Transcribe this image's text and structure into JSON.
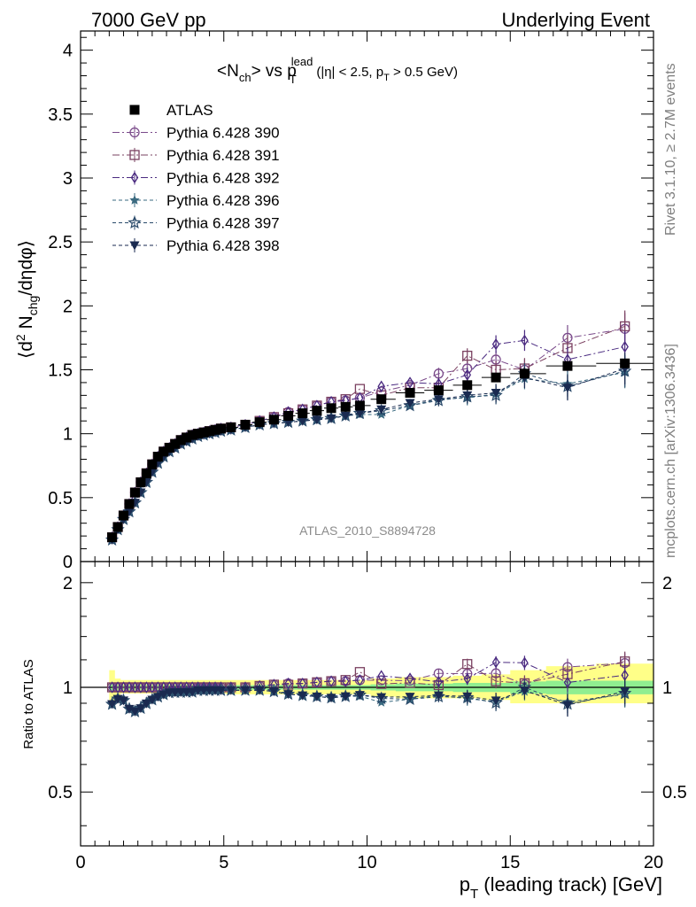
{
  "header": {
    "left": "7000 GeV pp",
    "right": "Underlying Event"
  },
  "side_labels": {
    "rivet": "Rivet 3.1.10, ≥ 2.7M events",
    "mcplots": "mcplots.cern.ch [arXiv:1306.3436]"
  },
  "plot": {
    "title_main": "<N",
    "title_sub_ch": "ch",
    "title_mid": "> vs p",
    "title_sub_t": "T",
    "title_sup_lead": "lead",
    "title_cuts_a": "(|η| < 2.5, p",
    "title_cuts_sub": "T",
    "title_cuts_b": " > 0.5 GeV)",
    "ylabel_a": "⟨d",
    "ylabel_sup": "2",
    "ylabel_b": " N",
    "ylabel_sub": "chg",
    "ylabel_c": "/dηdφ⟩",
    "analysis_id": "ATLAS_2010_S8894728",
    "ratio_ylabel": "Ratio to ATLAS",
    "xlabel_a": "p",
    "xlabel_sub": "T",
    "xlabel_b": " (leading track) [GeV]"
  },
  "chart_data": {
    "type": "scatter",
    "xlim": [
      0,
      20
    ],
    "ylim_main": [
      0,
      4.15
    ],
    "ylim_ratio": [
      0.35,
      2.3
    ],
    "ratio_log_scale": true,
    "x_ticks": [
      "0",
      "5",
      "10",
      "15",
      "20"
    ],
    "y_ticks_main": [
      "0",
      "0.5",
      "1",
      "1.5",
      "2",
      "2.5",
      "3",
      "3.5",
      "4"
    ],
    "y_ticks_ratio": [
      "0.5",
      "1",
      "2"
    ],
    "legend_position": "top-left",
    "x": [
      1.1,
      1.3,
      1.5,
      1.7,
      1.9,
      2.1,
      2.3,
      2.5,
      2.7,
      2.9,
      3.1,
      3.3,
      3.5,
      3.7,
      3.9,
      4.1,
      4.3,
      4.5,
      4.7,
      4.9,
      5.25,
      5.75,
      6.25,
      6.75,
      7.25,
      7.75,
      8.25,
      8.75,
      9.25,
      9.75,
      10.5,
      11.5,
      12.5,
      13.5,
      14.5,
      15.5,
      17.0,
      19.0
    ],
    "series": [
      {
        "name": "ATLAS",
        "color": "#000000",
        "values": [
          0.19,
          0.27,
          0.36,
          0.45,
          0.54,
          0.62,
          0.69,
          0.76,
          0.82,
          0.86,
          0.89,
          0.92,
          0.95,
          0.97,
          0.99,
          1.0,
          1.01,
          1.02,
          1.03,
          1.04,
          1.05,
          1.07,
          1.09,
          1.11,
          1.14,
          1.16,
          1.18,
          1.2,
          1.21,
          1.22,
          1.27,
          1.32,
          1.34,
          1.38,
          1.44,
          1.47,
          1.53,
          1.55
        ],
        "band_lo": [
          0.9,
          0.95,
          0.96,
          0.96,
          0.96,
          0.96,
          0.96,
          0.96,
          0.96,
          0.96,
          0.96,
          0.96,
          0.96,
          0.96,
          0.96,
          0.96,
          0.96,
          0.96,
          0.96,
          0.96,
          0.955,
          0.955,
          0.955,
          0.955,
          0.955,
          0.955,
          0.955,
          0.955,
          0.955,
          0.955,
          0.94,
          0.93,
          0.93,
          0.93,
          0.92,
          0.9,
          0.9,
          0.9
        ],
        "band_hi": [
          1.12,
          1.06,
          1.05,
          1.05,
          1.05,
          1.05,
          1.05,
          1.05,
          1.05,
          1.05,
          1.05,
          1.05,
          1.05,
          1.05,
          1.05,
          1.05,
          1.05,
          1.05,
          1.05,
          1.05,
          1.05,
          1.05,
          1.05,
          1.05,
          1.05,
          1.05,
          1.05,
          1.05,
          1.05,
          1.05,
          1.06,
          1.07,
          1.07,
          1.08,
          1.09,
          1.12,
          1.15,
          1.17
        ],
        "inner_lo": [
          0.98,
          0.985,
          0.985,
          0.985,
          0.985,
          0.985,
          0.985,
          0.985,
          0.985,
          0.985,
          0.985,
          0.985,
          0.985,
          0.985,
          0.985,
          0.985,
          0.985,
          0.985,
          0.985,
          0.985,
          0.985,
          0.985,
          0.985,
          0.985,
          0.985,
          0.985,
          0.985,
          0.985,
          0.985,
          0.985,
          0.98,
          0.975,
          0.975,
          0.97,
          0.97,
          0.96,
          0.955,
          0.955
        ],
        "inner_hi": [
          1.02,
          1.015,
          1.015,
          1.015,
          1.015,
          1.015,
          1.015,
          1.015,
          1.015,
          1.015,
          1.015,
          1.015,
          1.015,
          1.015,
          1.015,
          1.015,
          1.015,
          1.015,
          1.015,
          1.015,
          1.015,
          1.015,
          1.015,
          1.015,
          1.015,
          1.015,
          1.015,
          1.015,
          1.015,
          1.015,
          1.02,
          1.025,
          1.025,
          1.03,
          1.03,
          1.04,
          1.045,
          1.045
        ]
      },
      {
        "name": "Pythia 6.428 390",
        "color": "#7a4a8a",
        "marker": "circle-open",
        "dash": "8,3,2,3",
        "values": [
          0.19,
          0.27,
          0.36,
          0.45,
          0.54,
          0.62,
          0.69,
          0.76,
          0.82,
          0.86,
          0.89,
          0.92,
          0.95,
          0.97,
          0.99,
          1.0,
          1.01,
          1.02,
          1.03,
          1.04,
          1.05,
          1.07,
          1.1,
          1.13,
          1.17,
          1.19,
          1.22,
          1.25,
          1.26,
          1.28,
          1.33,
          1.38,
          1.47,
          1.51,
          1.58,
          1.5,
          1.75,
          1.82
        ]
      },
      {
        "name": "Pythia 6.428 391",
        "color": "#7a4060",
        "marker": "square-open",
        "dash": "8,3,2,3",
        "values": [
          0.19,
          0.27,
          0.36,
          0.45,
          0.54,
          0.62,
          0.69,
          0.76,
          0.82,
          0.86,
          0.89,
          0.92,
          0.95,
          0.97,
          0.99,
          1.0,
          1.01,
          1.02,
          1.03,
          1.04,
          1.05,
          1.07,
          1.1,
          1.13,
          1.16,
          1.19,
          1.22,
          1.25,
          1.27,
          1.35,
          1.3,
          1.36,
          1.36,
          1.61,
          1.5,
          1.51,
          1.67,
          1.84
        ]
      },
      {
        "name": "Pythia 6.428 392",
        "color": "#4a2a80",
        "marker": "diamond-open",
        "dash": "8,3,2,3",
        "values": [
          0.19,
          0.27,
          0.36,
          0.45,
          0.54,
          0.62,
          0.69,
          0.76,
          0.82,
          0.86,
          0.89,
          0.92,
          0.95,
          0.97,
          0.99,
          1.0,
          1.01,
          1.02,
          1.03,
          1.04,
          1.05,
          1.07,
          1.1,
          1.13,
          1.17,
          1.19,
          1.22,
          1.25,
          1.26,
          1.28,
          1.37,
          1.4,
          1.39,
          1.46,
          1.7,
          1.73,
          1.58,
          1.68
        ]
      },
      {
        "name": "Pythia 6.428 396",
        "color": "#3a6a80",
        "marker": "star-filled",
        "dash": "4,3",
        "values": [
          0.17,
          0.25,
          0.33,
          0.39,
          0.46,
          0.54,
          0.62,
          0.7,
          0.77,
          0.82,
          0.86,
          0.89,
          0.92,
          0.94,
          0.96,
          0.98,
          0.99,
          1.0,
          1.01,
          1.02,
          1.03,
          1.05,
          1.07,
          1.08,
          1.09,
          1.1,
          1.11,
          1.12,
          1.14,
          1.15,
          1.15,
          1.22,
          1.27,
          1.28,
          1.31,
          1.43,
          1.39,
          1.48
        ]
      },
      {
        "name": "Pythia 6.428 397",
        "color": "#2a4a6a",
        "marker": "star-open",
        "dash": "4,3",
        "values": [
          0.17,
          0.25,
          0.33,
          0.39,
          0.46,
          0.54,
          0.62,
          0.7,
          0.77,
          0.82,
          0.86,
          0.89,
          0.92,
          0.94,
          0.96,
          0.98,
          0.99,
          1.0,
          1.01,
          1.02,
          1.03,
          1.05,
          1.07,
          1.08,
          1.09,
          1.1,
          1.11,
          1.12,
          1.14,
          1.16,
          1.18,
          1.22,
          1.26,
          1.29,
          1.3,
          1.47,
          1.37,
          1.49
        ]
      },
      {
        "name": "Pythia 6.428 398",
        "color": "#1a2a50",
        "marker": "triangle-down-filled",
        "dash": "4,3",
        "values": [
          0.17,
          0.25,
          0.33,
          0.39,
          0.46,
          0.54,
          0.62,
          0.7,
          0.77,
          0.82,
          0.86,
          0.89,
          0.92,
          0.94,
          0.96,
          0.98,
          0.99,
          1.0,
          1.01,
          1.02,
          1.03,
          1.05,
          1.07,
          1.08,
          1.09,
          1.1,
          1.11,
          1.12,
          1.14,
          1.16,
          1.19,
          1.24,
          1.27,
          1.3,
          1.32,
          1.44,
          1.36,
          1.51
        ]
      }
    ]
  }
}
